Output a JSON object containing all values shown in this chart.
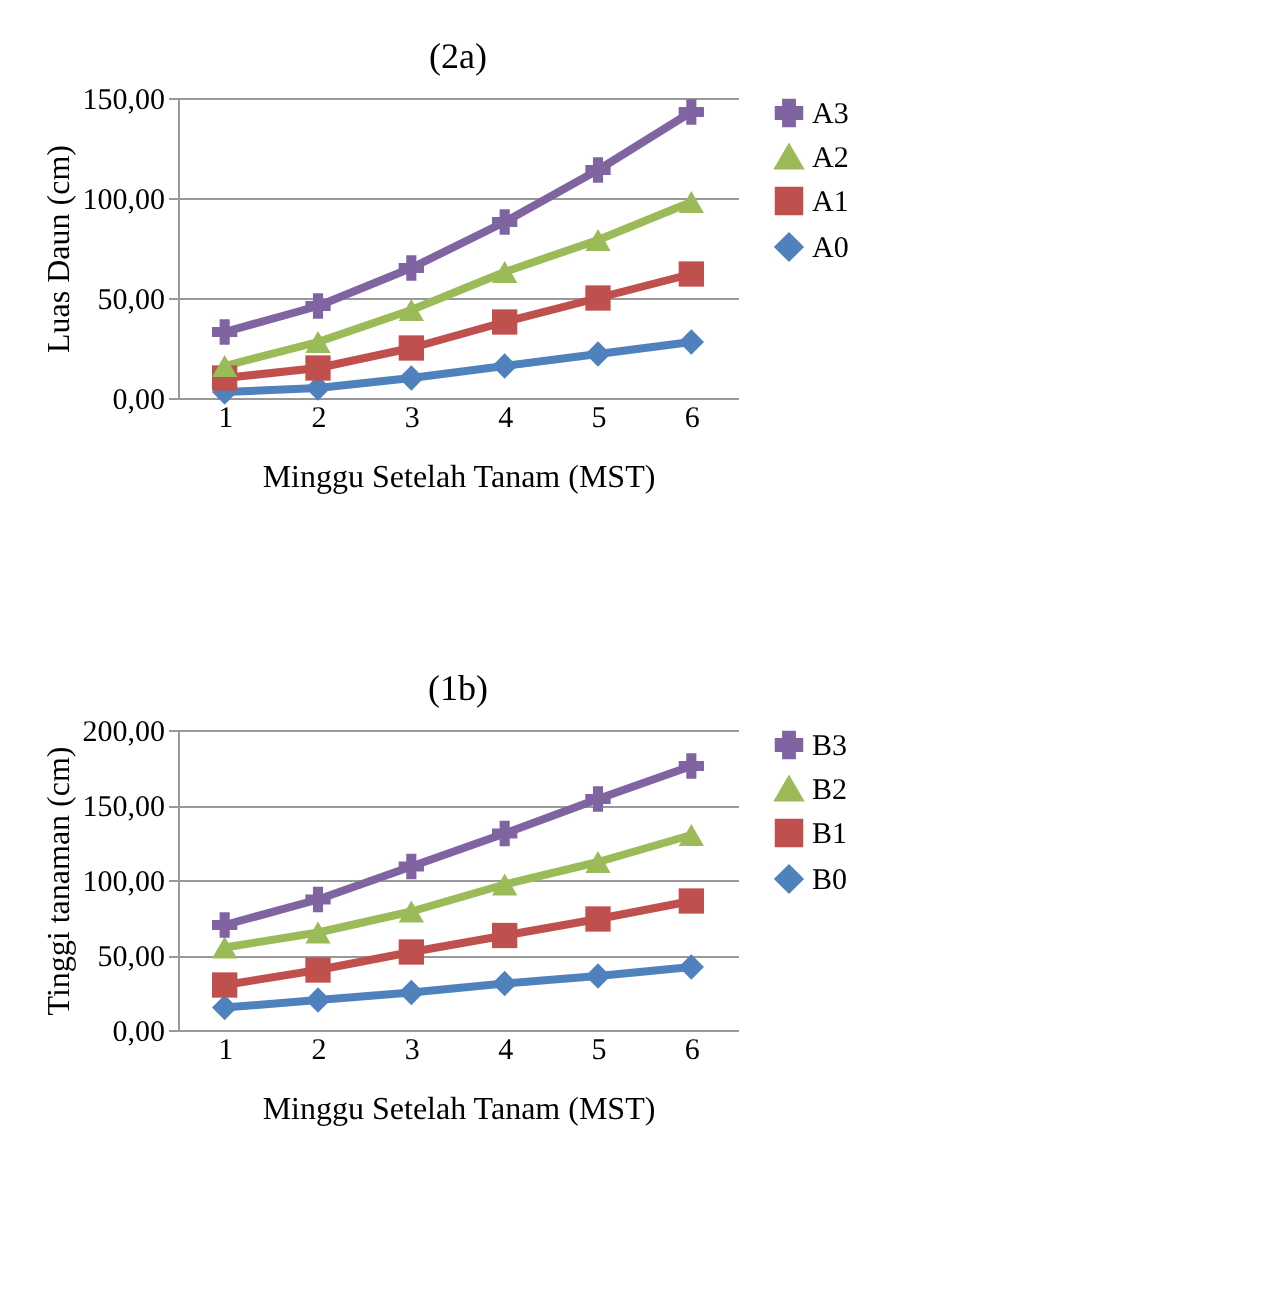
{
  "chart_data": [
    {
      "type": "line",
      "title": "(2a)",
      "xlabel": "Minggu Setelah Tanam (MST)",
      "ylabel": "Luas Daun (cm)",
      "categories": [
        "1",
        "2",
        "3",
        "4",
        "5",
        "6"
      ],
      "ylim": [
        0,
        150
      ],
      "yticks": [
        {
          "value": 0,
          "label": "0,00"
        },
        {
          "value": 50,
          "label": "50,00"
        },
        {
          "value": 100,
          "label": "100,00"
        },
        {
          "value": 150,
          "label": "150,00"
        }
      ],
      "grid": "y",
      "legend": "right",
      "line_style": "solid",
      "series": [
        {
          "name": "A3",
          "color": "#8064a2",
          "marker": "cross",
          "values": [
            33,
            46,
            65,
            88,
            114,
            143
          ]
        },
        {
          "name": "A2",
          "color": "#9bbb59",
          "marker": "triangle",
          "values": [
            16,
            28,
            44,
            63,
            79,
            98
          ]
        },
        {
          "name": "A1",
          "color": "#c0504d",
          "marker": "square",
          "values": [
            10,
            15,
            25,
            38,
            50,
            62
          ]
        },
        {
          "name": "A0",
          "color": "#4f81bd",
          "marker": "diamond",
          "values": [
            3,
            5,
            10,
            16,
            22,
            28
          ]
        }
      ]
    },
    {
      "type": "line",
      "title": "(1b)",
      "xlabel": "Minggu Setelah Tanam (MST)",
      "ylabel": "Tinggi tanaman (cm)",
      "categories": [
        "1",
        "2",
        "3",
        "4",
        "5",
        "6"
      ],
      "ylim": [
        0,
        200
      ],
      "yticks": [
        {
          "value": 0,
          "label": "0,00"
        },
        {
          "value": 50,
          "label": "50,00"
        },
        {
          "value": 100,
          "label": "100,00"
        },
        {
          "value": 150,
          "label": "150,00"
        },
        {
          "value": 200,
          "label": "200,00"
        }
      ],
      "grid": "y",
      "legend": "right",
      "line_style": "solid",
      "series": [
        {
          "name": "B3",
          "color": "#8064a2",
          "marker": "cross",
          "values": [
            70,
            87,
            109,
            131,
            154,
            176
          ]
        },
        {
          "name": "B2",
          "color": "#9bbb59",
          "marker": "triangle",
          "values": [
            55,
            65,
            79,
            97,
            112,
            130
          ]
        },
        {
          "name": "B1",
          "color": "#c0504d",
          "marker": "square",
          "values": [
            30,
            40,
            52,
            63,
            74,
            86
          ]
        },
        {
          "name": "B0",
          "color": "#4f81bd",
          "marker": "diamond",
          "values": [
            15,
            20,
            25,
            31,
            36,
            42
          ]
        }
      ]
    }
  ]
}
